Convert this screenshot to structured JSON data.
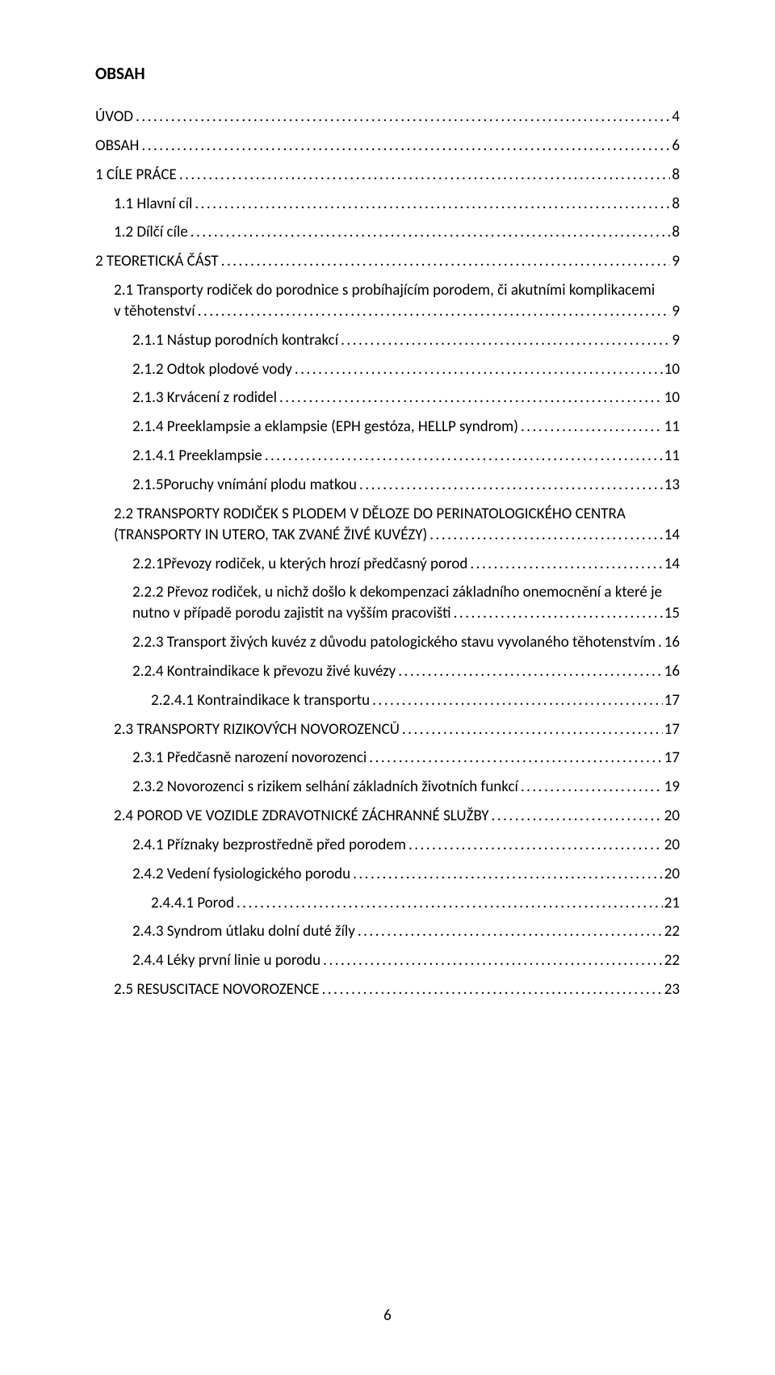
{
  "heading": "OBSAH",
  "page_number": "6",
  "colors": {
    "text": "#000000",
    "background": "#ffffff"
  },
  "typography": {
    "base_font": "Calibri",
    "heading_size_pt": 16,
    "body_size_pt": 14,
    "heading_weight": "bold"
  },
  "toc": [
    {
      "level": 0,
      "label": "ÚVOD",
      "page": "4"
    },
    {
      "level": 0,
      "label": "OBSAH",
      "page": "6"
    },
    {
      "level": 0,
      "label": "1 CÍLE PRÁCE",
      "page": "8"
    },
    {
      "level": 1,
      "label": "1.1 Hlavní cíl",
      "page": "8"
    },
    {
      "level": 1,
      "label": "1.2 Dílčí cíle",
      "page": "8"
    },
    {
      "level": 0,
      "label": "2 TEORETICKÁ ČÁST",
      "page": "9"
    },
    {
      "level": 1,
      "wrap": true,
      "line1": "2.1 Transporty rodiček do porodnice s probíhajícím porodem, či akutními komplikacemi",
      "line2": "v těhotenství",
      "page": "9"
    },
    {
      "level": 2,
      "label": "2.1.1 Nástup porodních kontrakcí",
      "page": "9"
    },
    {
      "level": 2,
      "label": "2.1.2 Odtok plodové vody",
      "page": "10"
    },
    {
      "level": 2,
      "label": "2.1.3 Krvácení z rodidel",
      "page": "10"
    },
    {
      "level": 2,
      "label": "2.1.4 Preeklampsie a eklampsie (EPH gestóza, HELLP syndrom)",
      "page": "11"
    },
    {
      "level": 2,
      "label": "2.1.4.1 Preeklampsie",
      "page": "11"
    },
    {
      "level": 2,
      "label": "2.1.5Poruchy vnímání plodu matkou",
      "page": "13"
    },
    {
      "level": 1,
      "wrap": true,
      "line1": "2.2 TRANSPORTY RODIČEK S PLODEM V DĚLOZE DO PERINATOLOGICKÉHO CENTRA",
      "line2": "(TRANSPORTY IN UTERO, TAK ZVANÉ ŽIVÉ KUVÉZY)",
      "page": "14"
    },
    {
      "level": 2,
      "label": "2.2.1Převozy rodiček, u kterých hrozí předčasný porod",
      "page": "14"
    },
    {
      "level": 2,
      "wrap": true,
      "line1": "2.2.2 Převoz rodiček, u nichž došlo k dekompenzaci základního onemocnění a které je",
      "line2": "nutno v případě porodu zajistit na vyšším pracovišti",
      "page": "15"
    },
    {
      "level": 2,
      "label": "2.2.3 Transport živých kuvéz z důvodu patologického stavu vyvolaného těhotenstvím",
      "page": "16"
    },
    {
      "level": 2,
      "label": "2.2.4 Kontraindikace k převozu živé kuvézy",
      "page": "16"
    },
    {
      "level": 2,
      "label": "2.2.4.1 Kontraindikace k transportu",
      "page": "17",
      "extra_indent": true
    },
    {
      "level": 1,
      "label": "2.3 TRANSPORTY RIZIKOVÝCH NOVOROZENCŮ",
      "page": "17"
    },
    {
      "level": 2,
      "label": "2.3.1 Předčasně narození novorozenci",
      "page": "17"
    },
    {
      "level": 2,
      "label": "2.3.2 Novorozenci s rizikem selhání základních životních funkcí",
      "page": "19"
    },
    {
      "level": 1,
      "label": "2.4 POROD VE VOZIDLE ZDRAVOTNICKÉ ZÁCHRANNÉ SLUŽBY",
      "page": "20"
    },
    {
      "level": 2,
      "label": "2.4.1 Příznaky bezprostředně před porodem",
      "page": "20"
    },
    {
      "level": 2,
      "label": "2.4.2 Vedení fysiologického porodu",
      "page": "20"
    },
    {
      "level": 2,
      "label": "2.4.4.1 Porod",
      "page": "21",
      "extra_indent": true
    },
    {
      "level": 2,
      "label": "2.4.3 Syndrom útlaku dolní duté žíly",
      "page": "22"
    },
    {
      "level": 2,
      "label": "2.4.4 Léky první linie u porodu",
      "page": "22"
    },
    {
      "level": 1,
      "label": "2.5 RESUSCITACE NOVOROZENCE",
      "page": "23"
    }
  ]
}
